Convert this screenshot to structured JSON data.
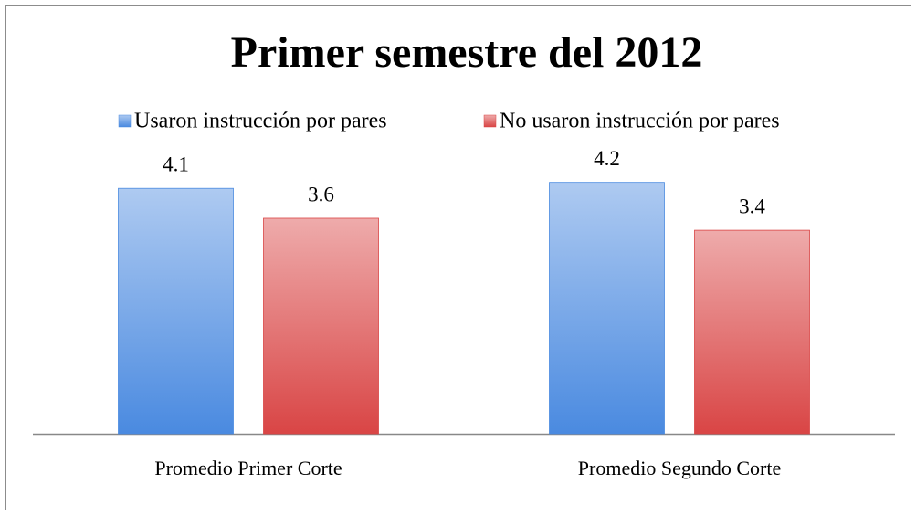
{
  "chart_data": {
    "type": "bar",
    "title": "Primer semestre del 2012",
    "categories": [
      "Promedio Primer Corte",
      "Promedio Segundo Corte"
    ],
    "series": [
      {
        "name": "Usaron instrucción por pares",
        "color": "#4a8ae0",
        "values": [
          4.1,
          4.2
        ]
      },
      {
        "name": "No usaron instrucción por pares",
        "color": "#d94545",
        "values": [
          3.6,
          3.4
        ]
      }
    ],
    "ylim": [
      0,
      4.5
    ],
    "legend": "top"
  }
}
